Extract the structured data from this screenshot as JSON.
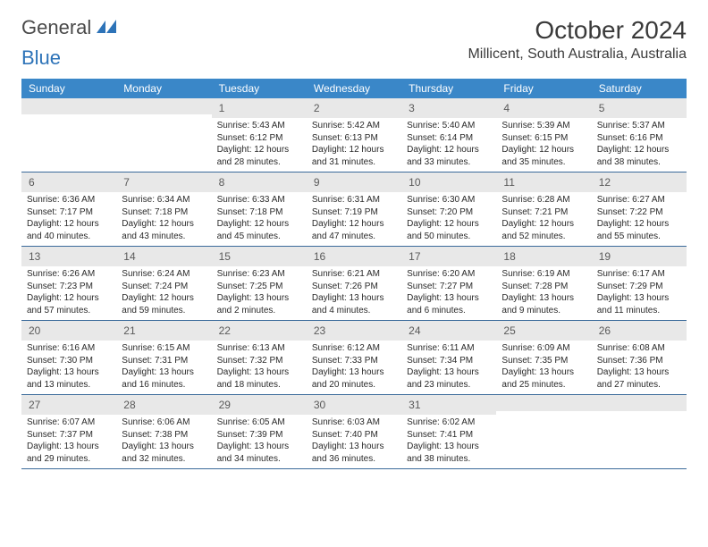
{
  "logo": {
    "word1": "General",
    "word2": "Blue"
  },
  "title": "October 2024",
  "location": "Millicent, South Australia, Australia",
  "colors": {
    "header_bg": "#3a87c8",
    "header_text": "#ffffff",
    "daynum_bg": "#e8e8e8",
    "week_border": "#3a6a9a",
    "text": "#2a2a2a",
    "logo_gray": "#4a4a4a",
    "logo_blue": "#2d73b8"
  },
  "day_names": [
    "Sunday",
    "Monday",
    "Tuesday",
    "Wednesday",
    "Thursday",
    "Friday",
    "Saturday"
  ],
  "weeks": [
    [
      {
        "day": "",
        "sunrise": "",
        "sunset": "",
        "daylight1": "",
        "daylight2": ""
      },
      {
        "day": "",
        "sunrise": "",
        "sunset": "",
        "daylight1": "",
        "daylight2": ""
      },
      {
        "day": "1",
        "sunrise": "Sunrise: 5:43 AM",
        "sunset": "Sunset: 6:12 PM",
        "daylight1": "Daylight: 12 hours",
        "daylight2": "and 28 minutes."
      },
      {
        "day": "2",
        "sunrise": "Sunrise: 5:42 AM",
        "sunset": "Sunset: 6:13 PM",
        "daylight1": "Daylight: 12 hours",
        "daylight2": "and 31 minutes."
      },
      {
        "day": "3",
        "sunrise": "Sunrise: 5:40 AM",
        "sunset": "Sunset: 6:14 PM",
        "daylight1": "Daylight: 12 hours",
        "daylight2": "and 33 minutes."
      },
      {
        "day": "4",
        "sunrise": "Sunrise: 5:39 AM",
        "sunset": "Sunset: 6:15 PM",
        "daylight1": "Daylight: 12 hours",
        "daylight2": "and 35 minutes."
      },
      {
        "day": "5",
        "sunrise": "Sunrise: 5:37 AM",
        "sunset": "Sunset: 6:16 PM",
        "daylight1": "Daylight: 12 hours",
        "daylight2": "and 38 minutes."
      }
    ],
    [
      {
        "day": "6",
        "sunrise": "Sunrise: 6:36 AM",
        "sunset": "Sunset: 7:17 PM",
        "daylight1": "Daylight: 12 hours",
        "daylight2": "and 40 minutes."
      },
      {
        "day": "7",
        "sunrise": "Sunrise: 6:34 AM",
        "sunset": "Sunset: 7:18 PM",
        "daylight1": "Daylight: 12 hours",
        "daylight2": "and 43 minutes."
      },
      {
        "day": "8",
        "sunrise": "Sunrise: 6:33 AM",
        "sunset": "Sunset: 7:18 PM",
        "daylight1": "Daylight: 12 hours",
        "daylight2": "and 45 minutes."
      },
      {
        "day": "9",
        "sunrise": "Sunrise: 6:31 AM",
        "sunset": "Sunset: 7:19 PM",
        "daylight1": "Daylight: 12 hours",
        "daylight2": "and 47 minutes."
      },
      {
        "day": "10",
        "sunrise": "Sunrise: 6:30 AM",
        "sunset": "Sunset: 7:20 PM",
        "daylight1": "Daylight: 12 hours",
        "daylight2": "and 50 minutes."
      },
      {
        "day": "11",
        "sunrise": "Sunrise: 6:28 AM",
        "sunset": "Sunset: 7:21 PM",
        "daylight1": "Daylight: 12 hours",
        "daylight2": "and 52 minutes."
      },
      {
        "day": "12",
        "sunrise": "Sunrise: 6:27 AM",
        "sunset": "Sunset: 7:22 PM",
        "daylight1": "Daylight: 12 hours",
        "daylight2": "and 55 minutes."
      }
    ],
    [
      {
        "day": "13",
        "sunrise": "Sunrise: 6:26 AM",
        "sunset": "Sunset: 7:23 PM",
        "daylight1": "Daylight: 12 hours",
        "daylight2": "and 57 minutes."
      },
      {
        "day": "14",
        "sunrise": "Sunrise: 6:24 AM",
        "sunset": "Sunset: 7:24 PM",
        "daylight1": "Daylight: 12 hours",
        "daylight2": "and 59 minutes."
      },
      {
        "day": "15",
        "sunrise": "Sunrise: 6:23 AM",
        "sunset": "Sunset: 7:25 PM",
        "daylight1": "Daylight: 13 hours",
        "daylight2": "and 2 minutes."
      },
      {
        "day": "16",
        "sunrise": "Sunrise: 6:21 AM",
        "sunset": "Sunset: 7:26 PM",
        "daylight1": "Daylight: 13 hours",
        "daylight2": "and 4 minutes."
      },
      {
        "day": "17",
        "sunrise": "Sunrise: 6:20 AM",
        "sunset": "Sunset: 7:27 PM",
        "daylight1": "Daylight: 13 hours",
        "daylight2": "and 6 minutes."
      },
      {
        "day": "18",
        "sunrise": "Sunrise: 6:19 AM",
        "sunset": "Sunset: 7:28 PM",
        "daylight1": "Daylight: 13 hours",
        "daylight2": "and 9 minutes."
      },
      {
        "day": "19",
        "sunrise": "Sunrise: 6:17 AM",
        "sunset": "Sunset: 7:29 PM",
        "daylight1": "Daylight: 13 hours",
        "daylight2": "and 11 minutes."
      }
    ],
    [
      {
        "day": "20",
        "sunrise": "Sunrise: 6:16 AM",
        "sunset": "Sunset: 7:30 PM",
        "daylight1": "Daylight: 13 hours",
        "daylight2": "and 13 minutes."
      },
      {
        "day": "21",
        "sunrise": "Sunrise: 6:15 AM",
        "sunset": "Sunset: 7:31 PM",
        "daylight1": "Daylight: 13 hours",
        "daylight2": "and 16 minutes."
      },
      {
        "day": "22",
        "sunrise": "Sunrise: 6:13 AM",
        "sunset": "Sunset: 7:32 PM",
        "daylight1": "Daylight: 13 hours",
        "daylight2": "and 18 minutes."
      },
      {
        "day": "23",
        "sunrise": "Sunrise: 6:12 AM",
        "sunset": "Sunset: 7:33 PM",
        "daylight1": "Daylight: 13 hours",
        "daylight2": "and 20 minutes."
      },
      {
        "day": "24",
        "sunrise": "Sunrise: 6:11 AM",
        "sunset": "Sunset: 7:34 PM",
        "daylight1": "Daylight: 13 hours",
        "daylight2": "and 23 minutes."
      },
      {
        "day": "25",
        "sunrise": "Sunrise: 6:09 AM",
        "sunset": "Sunset: 7:35 PM",
        "daylight1": "Daylight: 13 hours",
        "daylight2": "and 25 minutes."
      },
      {
        "day": "26",
        "sunrise": "Sunrise: 6:08 AM",
        "sunset": "Sunset: 7:36 PM",
        "daylight1": "Daylight: 13 hours",
        "daylight2": "and 27 minutes."
      }
    ],
    [
      {
        "day": "27",
        "sunrise": "Sunrise: 6:07 AM",
        "sunset": "Sunset: 7:37 PM",
        "daylight1": "Daylight: 13 hours",
        "daylight2": "and 29 minutes."
      },
      {
        "day": "28",
        "sunrise": "Sunrise: 6:06 AM",
        "sunset": "Sunset: 7:38 PM",
        "daylight1": "Daylight: 13 hours",
        "daylight2": "and 32 minutes."
      },
      {
        "day": "29",
        "sunrise": "Sunrise: 6:05 AM",
        "sunset": "Sunset: 7:39 PM",
        "daylight1": "Daylight: 13 hours",
        "daylight2": "and 34 minutes."
      },
      {
        "day": "30",
        "sunrise": "Sunrise: 6:03 AM",
        "sunset": "Sunset: 7:40 PM",
        "daylight1": "Daylight: 13 hours",
        "daylight2": "and 36 minutes."
      },
      {
        "day": "31",
        "sunrise": "Sunrise: 6:02 AM",
        "sunset": "Sunset: 7:41 PM",
        "daylight1": "Daylight: 13 hours",
        "daylight2": "and 38 minutes."
      },
      {
        "day": "",
        "sunrise": "",
        "sunset": "",
        "daylight1": "",
        "daylight2": ""
      },
      {
        "day": "",
        "sunrise": "",
        "sunset": "",
        "daylight1": "",
        "daylight2": ""
      }
    ]
  ]
}
